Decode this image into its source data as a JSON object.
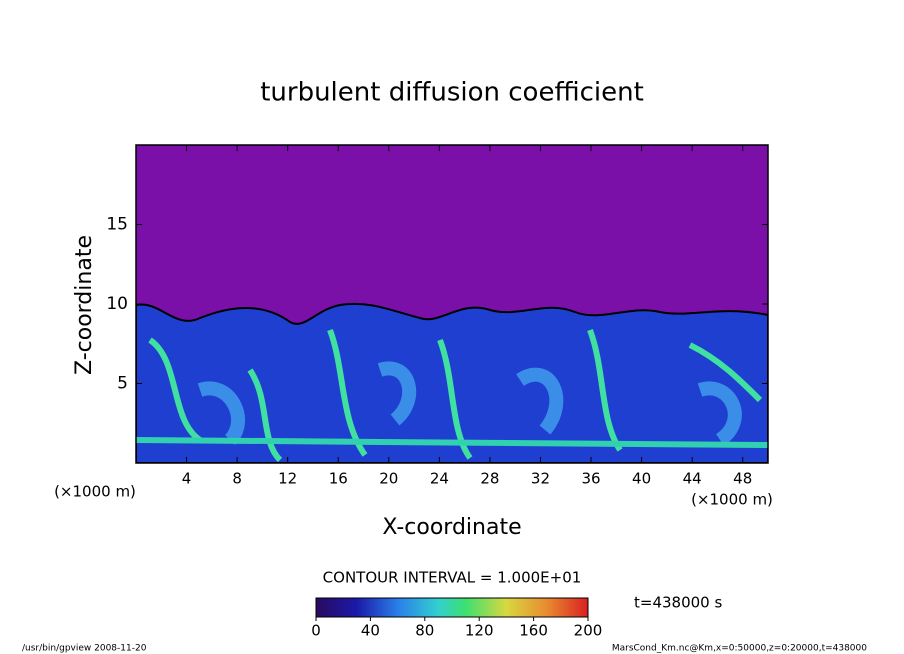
{
  "chart_data": {
    "type": "contour",
    "title": "turbulent diffusion coefficient",
    "xlabel": "X-coordinate",
    "ylabel": "Z-coordinate",
    "x_unit": "(×1000 m)",
    "xlim": [
      0,
      50
    ],
    "xticks": [
      4,
      8,
      12,
      16,
      20,
      24,
      28,
      32,
      36,
      40,
      44,
      48
    ],
    "ylim": [
      0,
      20
    ],
    "yticks": [
      5,
      10,
      15
    ],
    "contour_interval": "CONTOUR INTERVAL = 1.000E+01",
    "colorbar": {
      "lim": [
        0,
        200
      ],
      "ticks": [
        0,
        40,
        80,
        120,
        160,
        200
      ]
    },
    "time_label": "t=438000 s",
    "footer_left": "/usr/bin/gpview   2008-11-20",
    "footer_right": "MarsCond_Km.nc@Km,x=0:50000,z=0:20000,t=438000"
  }
}
